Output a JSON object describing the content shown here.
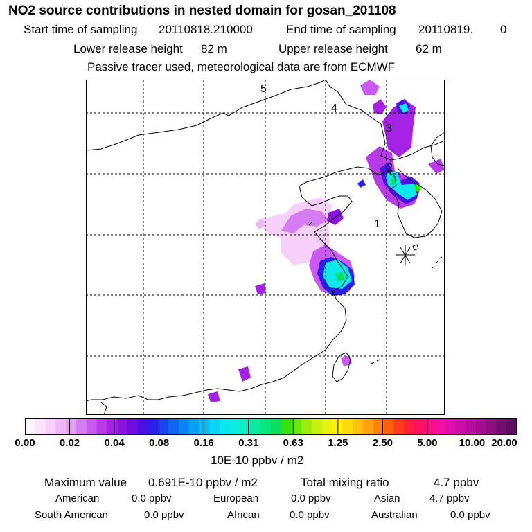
{
  "header": {
    "title": "NO2 source contributions in nested domain for gosan_201108",
    "start_label": "Start time of sampling",
    "start_value": "20110818.210000",
    "end_label": "End time of sampling",
    "end_value": "20110819.",
    "end_suffix": "0",
    "lower_label": "Lower release height",
    "lower_value": "82 m",
    "upper_label": "Upper release height",
    "upper_value": "62 m",
    "tracer_note": "Passive tracer used, meteorological data are from ECMWF"
  },
  "chart_data": {
    "type": "heatmap",
    "title": "NO2 source contributions in nested domain for gosan_201108",
    "grid": true,
    "legend_position": "bottom",
    "unit": "10E-10 ppbv / m2",
    "colorbar": {
      "ticks": [
        "0.00",
        "0.02",
        "0.04",
        "0.08",
        "0.16",
        "0.31",
        "0.63",
        "1.25",
        "2.50",
        "5.00",
        "10.00",
        "20.00"
      ],
      "colors": [
        "#fff5fe",
        "#fbe4fc",
        "#f6cffa",
        "#efb6f8",
        "#e5a0f5",
        "#d67cf2",
        "#c95aef",
        "#b93ae9",
        "#a322e3",
        "#8a13e0",
        "#6c0fe0",
        "#4b10e6",
        "#2c1fe9",
        "#1946ee",
        "#0f64f2",
        "#0b82f4",
        "#0aa0f6",
        "#0abcf6",
        "#0ad5f3",
        "#0ae8ec",
        "#0aeedb",
        "#0aefc0",
        "#0aeba0",
        "#0ae67f",
        "#0bde58",
        "#35e00f",
        "#6ae60f",
        "#9bec0f",
        "#c8f00f",
        "#ebf10f",
        "#fff10d",
        "#ffdb0d",
        "#ffc00d",
        "#ffa20d",
        "#ff820d",
        "#ff600d",
        "#ff3c1d",
        "#ff1f3c",
        "#ff1060",
        "#ff0e86",
        "#f40ea2",
        "#e00eae",
        "#cc0ea9",
        "#b70e9f",
        "#a20e91",
        "#8c0e80",
        "#760e6f",
        "#5e0e5c"
      ]
    },
    "markers": [
      {
        "label": "1"
      },
      {
        "label": "2"
      },
      {
        "label": "3"
      },
      {
        "label": "4"
      },
      {
        "label": "5"
      }
    ],
    "receptor_symbol": "*",
    "stats": {
      "max_label": "Maximum value",
      "max_value": "0.691E-10 ppbv / m2",
      "total_label": "Total mixing ratio",
      "total_value": "4.7 ppbv",
      "american_label": "American",
      "american_value": "0.0 ppbv",
      "european_label": "European",
      "european_value": "0.0 ppbv",
      "asian_label": "Asian",
      "asian_value": "4.7 ppbv",
      "south_american_label": "South American",
      "south_american_value": "0.0 ppbv",
      "african_label": "African",
      "african_value": "0.0 ppbv",
      "australian_label": "Australian",
      "australian_value": "0.0 ppbv"
    }
  }
}
